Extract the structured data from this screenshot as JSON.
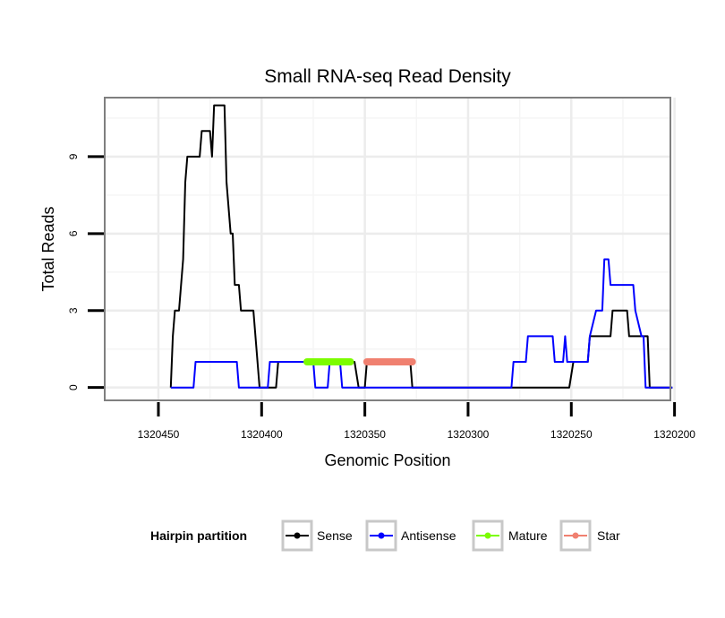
{
  "chart_data": {
    "type": "line",
    "title": "Small RNA-seq Read Density",
    "xlabel": "Genomic Position",
    "ylabel": "Total Reads",
    "xlim": [
      1320476,
      1320202
    ],
    "ylim": [
      -0.5,
      11.3
    ],
    "x_reversed": true,
    "grid": true,
    "xticks": [
      1320450,
      1320400,
      1320350,
      1320300,
      1320250,
      1320200
    ],
    "yticks": [
      0,
      3,
      6,
      9
    ],
    "series": [
      {
        "name": "Sense",
        "color": "#000000",
        "points": [
          [
            1320444,
            0
          ],
          [
            1320443,
            2
          ],
          [
            1320442,
            3
          ],
          [
            1320440,
            3
          ],
          [
            1320438,
            5
          ],
          [
            1320437,
            8
          ],
          [
            1320436,
            9
          ],
          [
            1320430,
            9
          ],
          [
            1320429,
            10
          ],
          [
            1320425,
            10
          ],
          [
            1320424,
            9
          ],
          [
            1320423,
            11
          ],
          [
            1320418,
            11
          ],
          [
            1320417,
            8
          ],
          [
            1320415,
            6
          ],
          [
            1320414,
            6
          ],
          [
            1320413,
            4
          ],
          [
            1320411,
            4
          ],
          [
            1320410,
            3
          ],
          [
            1320404,
            3
          ],
          [
            1320401,
            0
          ],
          [
            1320393,
            0
          ],
          [
            1320392,
            1
          ],
          [
            1320379,
            1
          ],
          [
            1320378,
            1
          ],
          [
            1320357,
            1
          ],
          [
            1320355,
            1
          ],
          [
            1320353,
            0
          ],
          [
            1320350,
            0
          ],
          [
            1320349,
            1
          ],
          [
            1320328,
            1
          ],
          [
            1320327,
            0
          ],
          [
            1320251,
            0
          ],
          [
            1320249,
            1
          ],
          [
            1320242,
            1
          ],
          [
            1320241,
            2
          ],
          [
            1320231,
            2
          ],
          [
            1320230,
            3
          ],
          [
            1320223,
            3
          ],
          [
            1320222,
            2
          ],
          [
            1320213,
            2
          ],
          [
            1320212,
            0
          ],
          [
            1320201,
            0
          ]
        ]
      },
      {
        "name": "Antisense",
        "color": "#0000ff",
        "points": [
          [
            1320444,
            0
          ],
          [
            1320433,
            0
          ],
          [
            1320432,
            1
          ],
          [
            1320412,
            1
          ],
          [
            1320411,
            0
          ],
          [
            1320397,
            0
          ],
          [
            1320396,
            1
          ],
          [
            1320375,
            1
          ],
          [
            1320374,
            0
          ],
          [
            1320368,
            0
          ],
          [
            1320367,
            1
          ],
          [
            1320362,
            1
          ],
          [
            1320361,
            0
          ],
          [
            1320328,
            0
          ],
          [
            1320327,
            0
          ],
          [
            1320279,
            0
          ],
          [
            1320278,
            1
          ],
          [
            1320272,
            1
          ],
          [
            1320271,
            2
          ],
          [
            1320259,
            2
          ],
          [
            1320258,
            1
          ],
          [
            1320254,
            1
          ],
          [
            1320253,
            2
          ],
          [
            1320252,
            1
          ],
          [
            1320242,
            1
          ],
          [
            1320241,
            2
          ],
          [
            1320238,
            3
          ],
          [
            1320235,
            3
          ],
          [
            1320234,
            5
          ],
          [
            1320232,
            5
          ],
          [
            1320231,
            4
          ],
          [
            1320220,
            4
          ],
          [
            1320219,
            3
          ],
          [
            1320216,
            2
          ],
          [
            1320215,
            2
          ],
          [
            1320214,
            0
          ],
          [
            1320201,
            0
          ]
        ]
      },
      {
        "name": "Mature",
        "color": "#7cfc00",
        "points": [
          [
            1320378,
            1
          ],
          [
            1320357,
            1
          ]
        ]
      },
      {
        "name": "Star",
        "color": "#f08070",
        "points": [
          [
            1320349,
            1
          ],
          [
            1320327,
            1
          ]
        ]
      }
    ],
    "legend": {
      "title": "Hairpin partition",
      "position": "bottom",
      "entries": [
        "Sense",
        "Antisense",
        "Mature",
        "Star"
      ]
    }
  }
}
